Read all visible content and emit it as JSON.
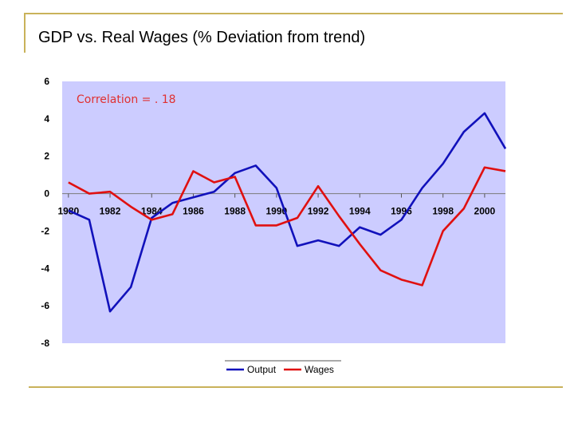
{
  "slide": {
    "title": "GDP vs. Real Wages (% Deviation from trend)"
  },
  "colors": {
    "plot_background": "#ccccff",
    "output": "#1111bb",
    "wages": "#e01010",
    "annotation": "#e03030",
    "rule": "#c9b25a"
  },
  "chart_data": {
    "type": "line",
    "title": "",
    "xlabel": "",
    "ylabel": "",
    "ylim": [
      -8,
      6
    ],
    "xlim": [
      1979.7,
      2001.0
    ],
    "grid": false,
    "legend_position": "bottom",
    "annotation": "Correlation = . 18",
    "y_ticks": [
      "6",
      "4",
      "2",
      "0",
      "-2",
      "-4",
      "-6",
      "-8"
    ],
    "x_ticks": [
      "1980",
      "1982",
      "1984",
      "1986",
      "1988",
      "1990",
      "1992",
      "1994",
      "1996",
      "1998",
      "2000"
    ],
    "x": [
      1980,
      1981,
      1982,
      1983,
      1984,
      1985,
      1986,
      1987,
      1988,
      1989,
      1990,
      1991,
      1992,
      1993,
      1994,
      1995,
      1996,
      1997,
      1998,
      1999,
      2000,
      2001
    ],
    "series": [
      {
        "name": "Output",
        "color": "#1111bb",
        "values": [
          -0.9,
          -1.4,
          -6.3,
          -5.0,
          -1.3,
          -0.5,
          -0.2,
          0.1,
          1.1,
          1.5,
          0.3,
          -2.8,
          -2.5,
          -2.8,
          -1.8,
          -2.2,
          -1.4,
          0.3,
          1.6,
          3.3,
          4.3,
          2.4
        ]
      },
      {
        "name": "Wages",
        "color": "#e01010",
        "values": [
          0.6,
          0.0,
          0.1,
          -0.7,
          -1.4,
          -1.1,
          1.2,
          0.6,
          0.9,
          -1.7,
          -1.7,
          -1.3,
          0.4,
          -1.2,
          -2.7,
          -4.1,
          -4.6,
          -4.9,
          -2.0,
          -0.8,
          1.4,
          1.2
        ]
      }
    ]
  }
}
